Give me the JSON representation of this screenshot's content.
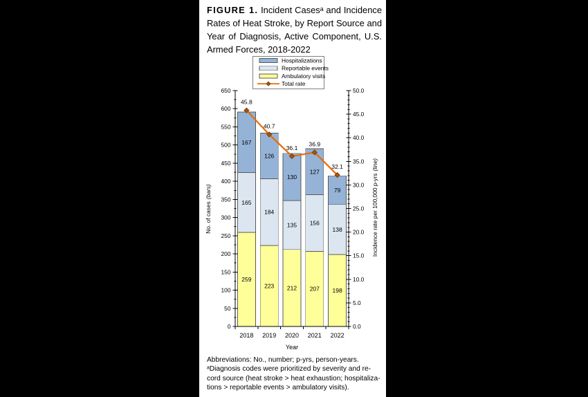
{
  "figure": {
    "label": "FIGURE 1.",
    "title": "Incident Casesᵃ and Incidence Rates of Heat Stroke, by Report Source and Year of Diagnosis, Active Component, U.S. Armed Forces, 2018-2022"
  },
  "footnote": {
    "lines": [
      "Abbreviations: No., number; p-yrs, person-years.",
      "ᵃDiagnosis codes were prioritized by severity and re-",
      "cord source (heat stroke > heat exhaustion; hospitaliza-",
      "tions > reportable events > ambulatory visits)."
    ]
  },
  "chart_data": {
    "type": "stacked-bar+line",
    "categories": [
      "2018",
      "2019",
      "2020",
      "2021",
      "2022"
    ],
    "series": [
      {
        "name": "Ambulatory visits",
        "values": [
          259,
          223,
          212,
          207,
          198
        ],
        "color": "#ffff99"
      },
      {
        "name": "Reportable events",
        "values": [
          165,
          184,
          135,
          156,
          138
        ],
        "color": "#dce6f1"
      },
      {
        "name": "Hospitalizations",
        "values": [
          167,
          126,
          130,
          127,
          79
        ],
        "color": "#95b3d7"
      }
    ],
    "line": {
      "name": "Total rate",
      "values": [
        45.8,
        40.7,
        36.1,
        36.9,
        32.1
      ],
      "color": "#e36c0a",
      "marker_color": "#a85608",
      "marker_border": "#6e3805"
    },
    "left_axis": {
      "label": "No. of cases",
      "label_italic": "(bars)",
      "min": 0,
      "max": 650,
      "major": 50,
      "minor": 25
    },
    "right_axis": {
      "label": "Incidence rate per 100,000 p-yrs",
      "label_italic": "(line)",
      "min": 0,
      "max": 50,
      "major": 5,
      "minor": 1,
      "decimals": 1
    },
    "xlabel": "Year",
    "legend": [
      {
        "label": "Hospitalizations",
        "swatch": "#95b3d7"
      },
      {
        "label": "Reportable events",
        "swatch": "#dce6f1"
      },
      {
        "label": "Ambulatory visits",
        "swatch": "#ffff99"
      },
      {
        "label": "Total rate",
        "swatch": "line"
      }
    ],
    "bar_border": "#595959",
    "legend_border": "#808080",
    "axis_color": "#000000"
  }
}
